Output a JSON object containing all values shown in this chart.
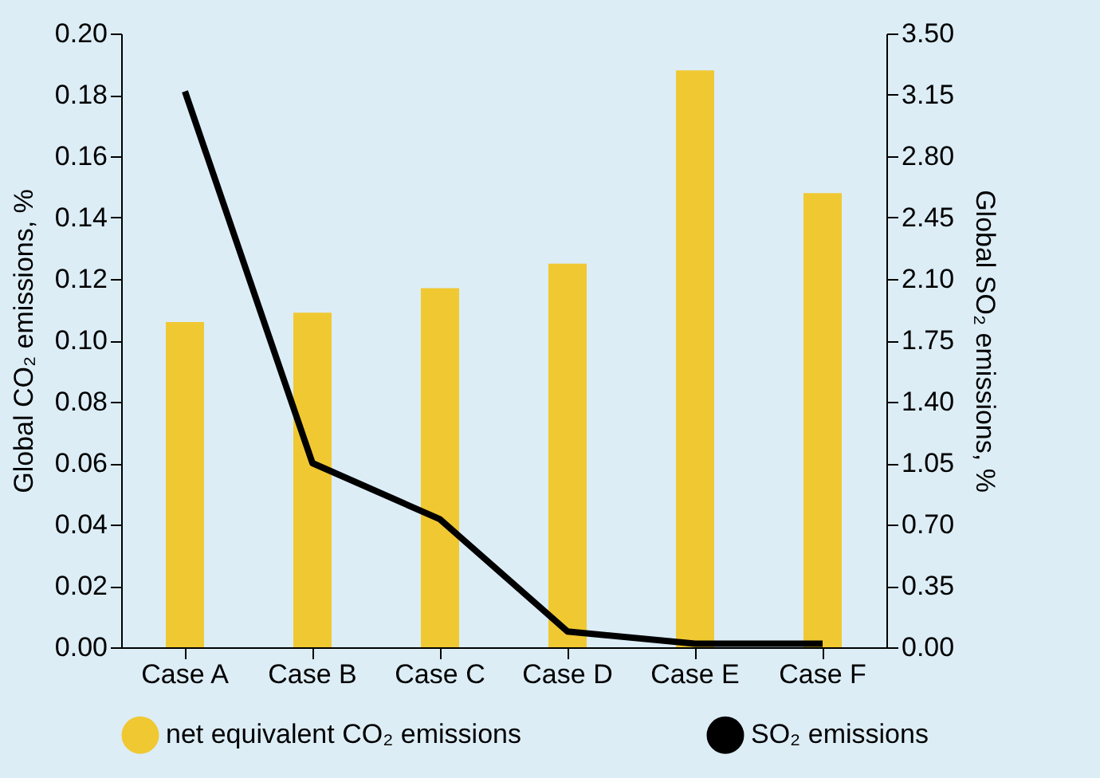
{
  "chart_data": {
    "type": "bar",
    "categories": [
      "Case A",
      "Case B",
      "Case C",
      "Case D",
      "Case E",
      "Case F"
    ],
    "ylabel": "Global CO₂ emissions, %",
    "y2label": "Global SO₂ emissions, %",
    "ylim": [
      0,
      0.2
    ],
    "yticks": [
      {
        "value": 0,
        "label": "0.00"
      },
      {
        "value": 0.02,
        "label": "0.02"
      },
      {
        "value": 0.04,
        "label": "0.04"
      },
      {
        "value": 0.06,
        "label": "0.06"
      },
      {
        "value": 0.08,
        "label": "0.08"
      },
      {
        "value": 0.1,
        "label": "0.10"
      },
      {
        "value": 0.12,
        "label": "0.12"
      },
      {
        "value": 0.14,
        "label": "0.14"
      },
      {
        "value": 0.16,
        "label": "0.16"
      },
      {
        "value": 0.18,
        "label": "0.18"
      },
      {
        "value": 0.2,
        "label": "0.20"
      }
    ],
    "y2lim": [
      0,
      3.5
    ],
    "y2ticks": [
      {
        "value": 0,
        "label": "0.00"
      },
      {
        "value": 0.35,
        "label": "0.35"
      },
      {
        "value": 0.7,
        "label": "0.70"
      },
      {
        "value": 1.05,
        "label": "1.05"
      },
      {
        "value": 1.4,
        "label": "1.40"
      },
      {
        "value": 1.75,
        "label": "1.75"
      },
      {
        "value": 2.1,
        "label": "2.10"
      },
      {
        "value": 2.45,
        "label": "2.45"
      },
      {
        "value": 2.8,
        "label": "2.80"
      },
      {
        "value": 3.15,
        "label": "3.15"
      },
      {
        "value": 3.5,
        "label": "3.50"
      }
    ],
    "series": [
      {
        "name": "net equivalent CO₂ emissions",
        "color": "#f0c832",
        "values": [
          0.106,
          0.109,
          0.117,
          0.125,
          0.188,
          0.148
        ]
      },
      {
        "name": "SO₂ emissions",
        "color": "#000000",
        "type": "line",
        "axis": "y2",
        "values": [
          3.17,
          1.05,
          0.73,
          0.09,
          0.02,
          0.02
        ]
      }
    ],
    "legend": "bottom",
    "grid": false,
    "marker": "none"
  }
}
